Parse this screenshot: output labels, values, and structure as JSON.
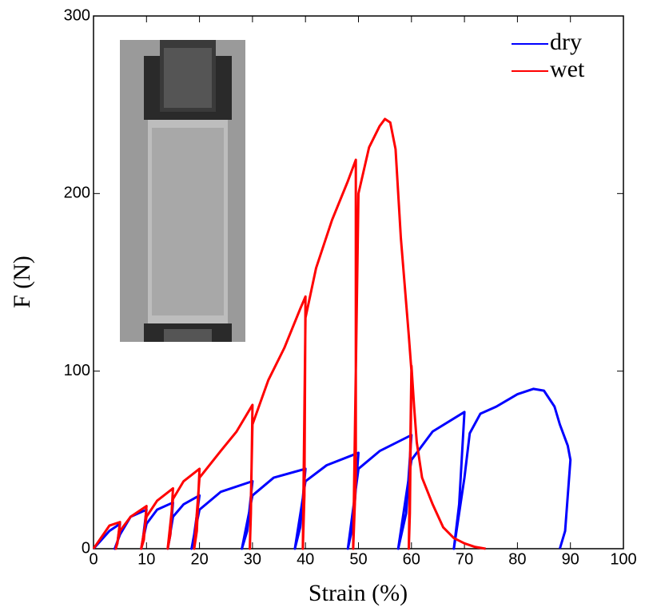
{
  "chart_data": {
    "type": "line",
    "xlabel": "Strain (%)",
    "ylabel": "F (N)",
    "xlim": [
      0,
      100
    ],
    "ylim": [
      0,
      300
    ],
    "xticks": [
      0,
      10,
      20,
      30,
      40,
      50,
      60,
      70,
      80,
      90,
      100
    ],
    "yticks": [
      0,
      100,
      200,
      300
    ],
    "legend": "upper right",
    "series": [
      {
        "name": "dry",
        "color": "#0000ff",
        "x": [
          0,
          3,
          5,
          4.5,
          4,
          5,
          7,
          10,
          9.3,
          9,
          10,
          12,
          15,
          14.5,
          14,
          15,
          17,
          20,
          19,
          18.5,
          20,
          24,
          30,
          29,
          28,
          30,
          34,
          40,
          39,
          38,
          40,
          44,
          50,
          49,
          48,
          50,
          54,
          60,
          59,
          57.5,
          60,
          64,
          70,
          69,
          68,
          70,
          71,
          73,
          76,
          80,
          83,
          85,
          87,
          88,
          89.5,
          90,
          89,
          88
        ],
        "values": [
          0,
          10,
          14,
          3,
          0,
          8,
          18,
          22,
          5,
          0,
          14,
          22,
          26,
          8,
          0,
          18,
          25,
          30,
          8,
          0,
          22,
          32,
          38,
          10,
          0,
          30,
          40,
          45,
          12,
          0,
          38,
          47,
          54,
          14,
          0,
          45,
          55,
          64,
          20,
          0,
          50,
          66,
          77,
          25,
          0,
          40,
          65,
          76,
          80,
          87,
          90,
          89,
          80,
          70,
          58,
          50,
          10,
          0
        ]
      },
      {
        "name": "wet",
        "color": "#ff0000",
        "x": [
          0,
          3,
          5,
          4.5,
          4.2,
          5,
          7,
          10,
          9.5,
          9,
          10,
          12,
          15,
          14.5,
          14,
          15,
          17,
          20,
          19.5,
          19,
          20,
          24,
          27,
          30,
          29.7,
          29.5,
          30,
          33,
          36,
          39,
          40,
          39.8,
          39.5,
          40,
          42,
          45,
          48,
          49.5,
          49.5,
          49,
          49.5,
          50,
          52,
          54,
          55,
          56,
          57,
          58,
          59.5,
          60,
          59.7,
          59.5,
          60,
          60.5,
          61,
          62,
          64,
          66,
          68,
          70,
          72,
          74
        ],
        "values": [
          0,
          13,
          15,
          3,
          0,
          10,
          18,
          24,
          5,
          0,
          18,
          27,
          34,
          8,
          0,
          28,
          38,
          45,
          10,
          0,
          40,
          55,
          66,
          81,
          20,
          0,
          70,
          95,
          113,
          135,
          142,
          30,
          0,
          130,
          158,
          185,
          207,
          219,
          40,
          0,
          100,
          200,
          226,
          238,
          242,
          240,
          225,
          175,
          120,
          100,
          20,
          0,
          103,
          80,
          60,
          40,
          25,
          12,
          6,
          3,
          1,
          0
        ]
      }
    ]
  }
}
